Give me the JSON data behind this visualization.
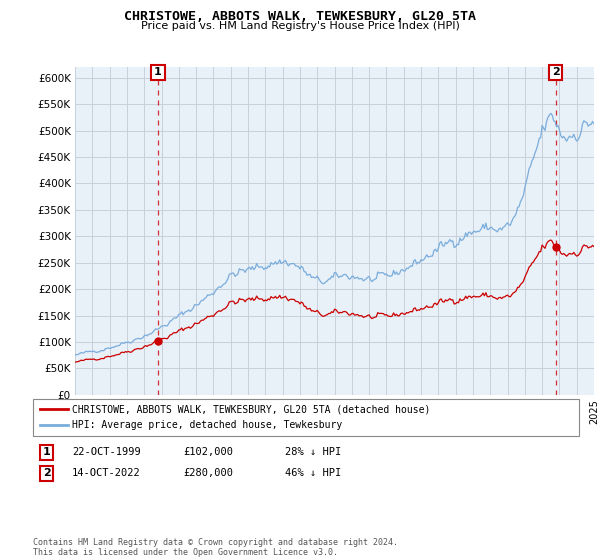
{
  "title": "CHRISTOWE, ABBOTS WALK, TEWKESBURY, GL20 5TA",
  "subtitle": "Price paid vs. HM Land Registry's House Price Index (HPI)",
  "legend_label_red": "CHRISTOWE, ABBOTS WALK, TEWKESBURY, GL20 5TA (detached house)",
  "legend_label_blue": "HPI: Average price, detached house, Tewkesbury",
  "annotation1_date": "22-OCT-1999",
  "annotation1_price": "£102,000",
  "annotation1_hpi": "28% ↓ HPI",
  "annotation2_date": "14-OCT-2022",
  "annotation2_price": "£280,000",
  "annotation2_hpi": "46% ↓ HPI",
  "footnote": "Contains HM Land Registry data © Crown copyright and database right 2024.\nThis data is licensed under the Open Government Licence v3.0.",
  "ylim_min": 0,
  "ylim_max": 620000,
  "yticks": [
    0,
    50000,
    100000,
    150000,
    200000,
    250000,
    300000,
    350000,
    400000,
    450000,
    500000,
    550000,
    600000
  ],
  "ytick_labels": [
    "£0",
    "£50K",
    "£100K",
    "£150K",
    "£200K",
    "£250K",
    "£300K",
    "£350K",
    "£400K",
    "£450K",
    "£500K",
    "£550K",
    "£600K"
  ],
  "color_red": "#cc0000",
  "color_blue": "#7aaddc",
  "background_color": "#ffffff",
  "plot_bg_color": "#e8f0f8",
  "grid_color": "#c8d0dc",
  "sale1_x": 1999.79,
  "sale1_y": 102000,
  "sale2_x": 2022.79,
  "sale2_y": 280000,
  "xmin": 1995,
  "xmax": 2025,
  "xticks": [
    1995,
    1996,
    1997,
    1998,
    1999,
    2000,
    2001,
    2002,
    2003,
    2004,
    2005,
    2006,
    2007,
    2008,
    2009,
    2010,
    2011,
    2012,
    2013,
    2014,
    2015,
    2016,
    2017,
    2018,
    2019,
    2020,
    2021,
    2022,
    2023,
    2024,
    2025
  ]
}
